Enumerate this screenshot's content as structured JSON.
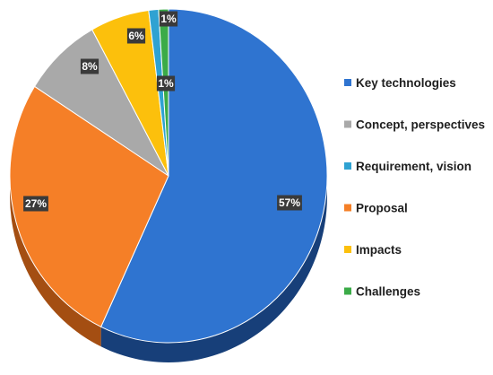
{
  "chart_data": {
    "type": "pie",
    "style": "3d",
    "title": "",
    "legend_position": "right",
    "slices": [
      {
        "label": "Key technologies",
        "value": 57,
        "display": "57%",
        "color": "#2f74d0",
        "side_color": "#173f79"
      },
      {
        "label": "Proposal",
        "value": 27,
        "display": "27%",
        "color": "#f57f27",
        "side_color": "#a44e12"
      },
      {
        "label": "Concept, perspectives",
        "value": 8,
        "display": "8%",
        "color": "#a9a9a9",
        "side_color": "#6b6b6b"
      },
      {
        "label": "Impacts",
        "value": 6,
        "display": "6%",
        "color": "#fcc00c",
        "side_color": "#a67d05"
      },
      {
        "label": "Requirement, vision",
        "value": 1,
        "display": "1%",
        "color": "#2fa2d2",
        "side_color": "#1a6f92"
      },
      {
        "label": "Challenges",
        "value": 1,
        "display": "1%",
        "color": "#3bab48",
        "side_color": "#22722b"
      }
    ],
    "legend": [
      {
        "label": "Key technologies",
        "color": "#2f74d0"
      },
      {
        "label": "Concept, perspectives",
        "color": "#a9a9a9"
      },
      {
        "label": "Requirement, vision",
        "color": "#2fa2d2"
      },
      {
        "label": "Proposal",
        "color": "#f57f27"
      },
      {
        "label": "Impacts",
        "color": "#fcc00c"
      },
      {
        "label": "Challenges",
        "color": "#3bab48"
      }
    ]
  }
}
